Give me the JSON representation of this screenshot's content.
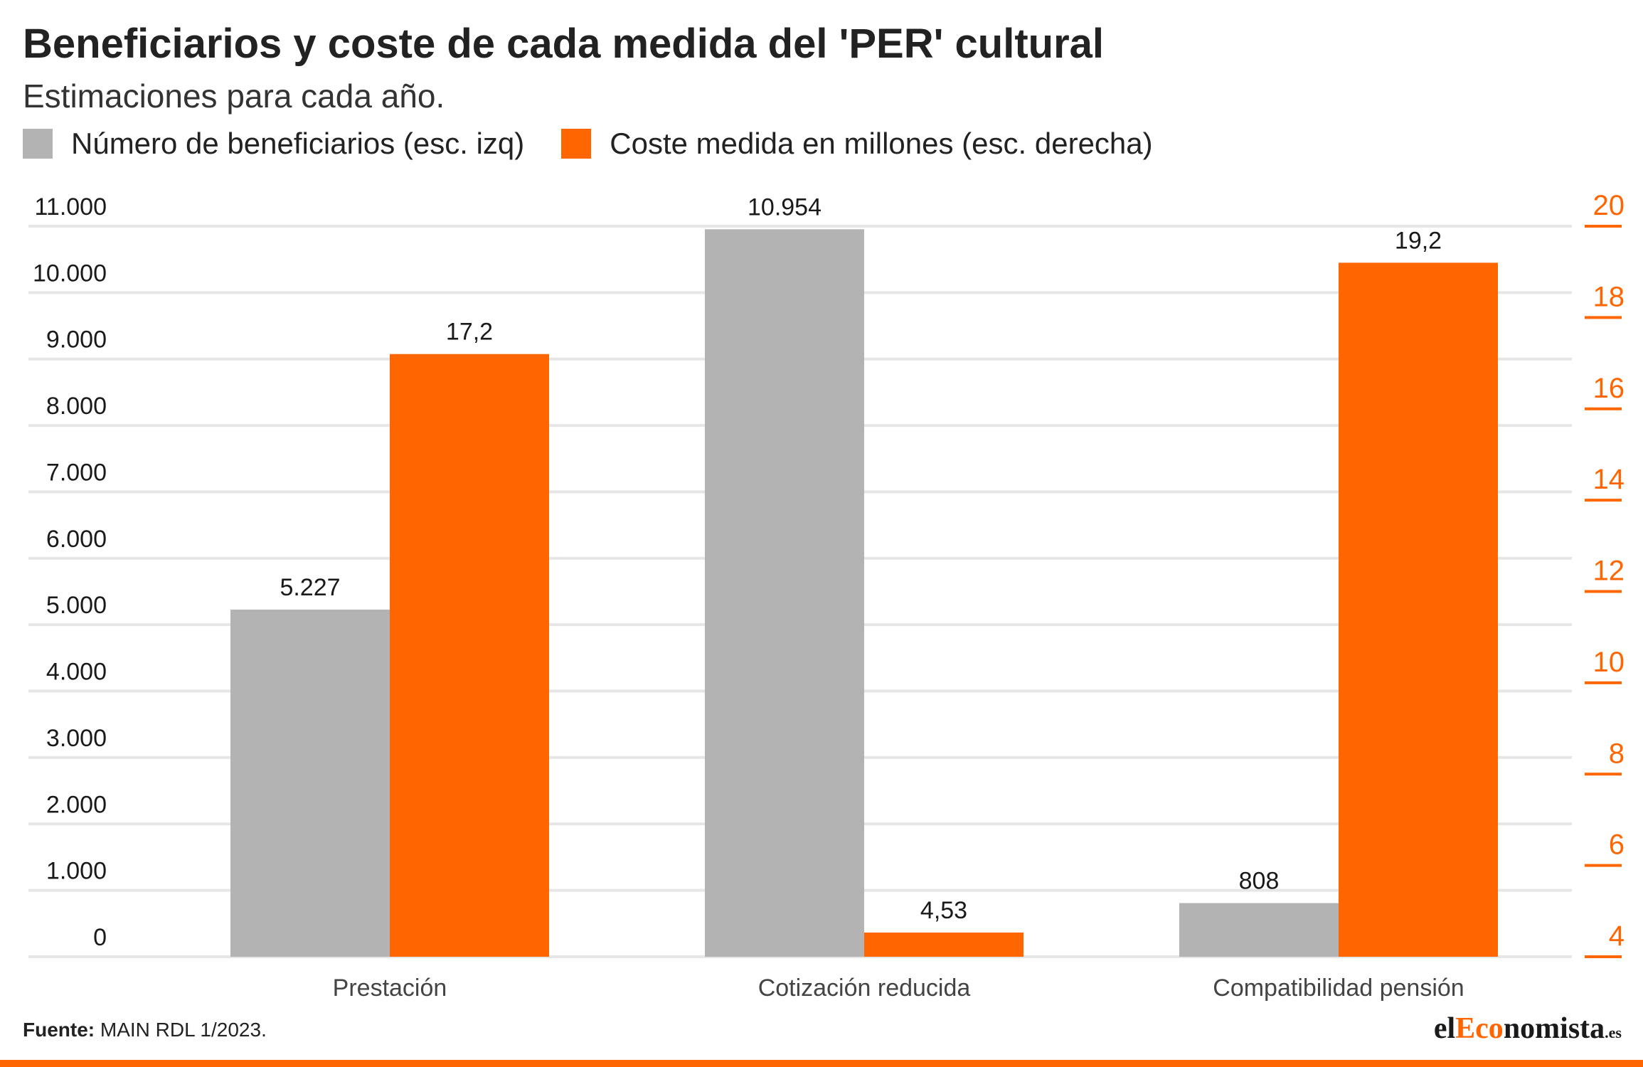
{
  "header": {
    "title": "Beneficiarios y coste de cada medida del 'PER' cultural",
    "subtitle": "Estimaciones para cada año."
  },
  "legend": [
    {
      "label": "Número de beneficiarios (esc. izq)",
      "color": "#b3b3b3"
    },
    {
      "label": "Coste medida en millones (esc. derecha)",
      "color": "#ff6600"
    }
  ],
  "footer": {
    "source_label": "Fuente:",
    "source_text": "MAIN RDL 1/2023.",
    "logo_prefix": "el",
    "logo_accent": "Eco",
    "logo_suffix": "nomista",
    "logo_tld": ".es"
  },
  "chart_data": {
    "type": "bar",
    "categories": [
      "Prestación",
      "Cotización reducida",
      "Compatibilidad pensión"
    ],
    "series": [
      {
        "name": "Número de beneficiarios (esc. izq)",
        "axis": "left",
        "color": "#b3b3b3",
        "values": [
          5227,
          10954,
          808
        ],
        "labels": [
          "5.227",
          "10.954",
          "808"
        ]
      },
      {
        "name": "Coste medida en millones (esc. derecha)",
        "axis": "right",
        "color": "#ff6600",
        "values": [
          17.2,
          4.53,
          19.2
        ],
        "labels": [
          "17,2",
          "4,53",
          "19,2"
        ]
      }
    ],
    "left_axis": {
      "ylim": [
        0,
        11000
      ],
      "ticks": [
        0,
        1000,
        2000,
        3000,
        4000,
        5000,
        6000,
        7000,
        8000,
        9000,
        10000,
        11000
      ],
      "tick_labels": [
        "0",
        "1.000",
        "2.000",
        "3.000",
        "4.000",
        "5.000",
        "6.000",
        "7.000",
        "8.000",
        "9.000",
        "10.000",
        "11.000"
      ]
    },
    "right_axis": {
      "ylim": [
        4,
        20
      ],
      "ticks": [
        4,
        6,
        8,
        10,
        12,
        14,
        16,
        18,
        20
      ],
      "tick_labels": [
        "4",
        "6",
        "8",
        "10",
        "12",
        "14",
        "16",
        "18",
        "20"
      ],
      "color": "#ff6600"
    },
    "grid": true,
    "legend_position": "top-left"
  }
}
